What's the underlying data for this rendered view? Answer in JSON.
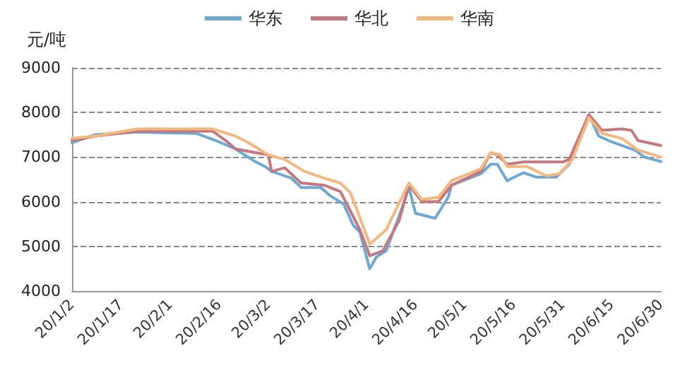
{
  "chart_data": {
    "type": "line",
    "ylabel": "元/吨",
    "legend": "top",
    "grid": "y",
    "marker": "none",
    "xlim": [
      "--01-02",
      "--06-30"
    ],
    "xticks": [
      {
        "value": "--01-02",
        "label": "20/1/2"
      },
      {
        "value": "--01-17",
        "label": "20/1/17"
      },
      {
        "value": "--02-01",
        "label": "20/2/1"
      },
      {
        "value": "--02-16",
        "label": "20/2/16"
      },
      {
        "value": "--03-02",
        "label": "20/3/2"
      },
      {
        "value": "--03-17",
        "label": "20/3/17"
      },
      {
        "value": "--04-01",
        "label": "20/4/1"
      },
      {
        "value": "--04-16",
        "label": "20/4/16"
      },
      {
        "value": "--05-01",
        "label": "20/5/1"
      },
      {
        "value": "--05-16",
        "label": "20/5/16"
      },
      {
        "value": "--05-31",
        "label": "20/5/31"
      },
      {
        "value": "--06-15",
        "label": "20/6/15"
      },
      {
        "value": "--06-30",
        "label": "20/6/30"
      }
    ],
    "ylim": [
      4000,
      9000
    ],
    "yticks": [
      4000,
      5000,
      6000,
      7000,
      8000,
      9000
    ],
    "series": [
      {
        "name": "华东",
        "color": "#6fa8d0",
        "x": [
          "--01-02",
          "--01-09",
          "--01-22",
          "--02-09",
          "--02-15",
          "--02-21",
          "--02-27",
          "--03-01",
          "--03-03",
          "--03-09",
          "--03-12",
          "--03-18",
          "--03-21",
          "--03-25",
          "--03-28",
          "--03-30",
          "--04-02",
          "--04-04",
          "--04-07",
          "--04-11",
          "--04-14",
          "--04-16",
          "--04-22",
          "--04-26",
          "--04-27",
          "--05-06",
          "--05-09",
          "--05-11",
          "--05-14",
          "--05-19",
          "--05-23",
          "--05-29",
          "--06-02",
          "--06-08",
          "--06-11",
          "--06-14",
          "--06-18",
          "--06-22",
          "--06-25",
          "--06-30"
        ],
        "values": [
          7320,
          7500,
          7560,
          7530,
          7370,
          7180,
          6900,
          6790,
          6680,
          6530,
          6320,
          6320,
          6130,
          5950,
          5470,
          5320,
          4500,
          4760,
          4900,
          5680,
          6320,
          5740,
          5630,
          6100,
          6370,
          6630,
          6840,
          6840,
          6470,
          6650,
          6550,
          6550,
          6840,
          7950,
          7470,
          7370,
          7260,
          7160,
          7000,
          6900
        ]
      },
      {
        "name": "华北",
        "color": "#c47880",
        "x": [
          "--01-02",
          "--01-09",
          "--01-22",
          "--02-14",
          "--02-18",
          "--02-21",
          "--02-27",
          "--03-02",
          "--03-03",
          "--03-07",
          "--03-12",
          "--03-19",
          "--03-24",
          "--03-26",
          "--03-30",
          "--04-02",
          "--04-06",
          "--04-11",
          "--04-14",
          "--04-18",
          "--04-23",
          "--04-27",
          "--05-06",
          "--05-09",
          "--05-11",
          "--05-14",
          "--05-19",
          "--05-31",
          "--06-02",
          "--06-08",
          "--06-12",
          "--06-18",
          "--06-21",
          "--06-23",
          "--06-30"
        ],
        "values": [
          7370,
          7470,
          7580,
          7580,
          7370,
          7180,
          7100,
          7050,
          6680,
          6760,
          6420,
          6370,
          6230,
          5950,
          5370,
          4790,
          4900,
          5580,
          6370,
          6000,
          6000,
          6370,
          6680,
          7100,
          7050,
          6840,
          6890,
          6890,
          6950,
          7950,
          7600,
          7630,
          7600,
          7370,
          7260
        ]
      },
      {
        "name": "华南",
        "color": "#f2b880",
        "x": [
          "--01-02",
          "--01-09",
          "--01-22",
          "--02-14",
          "--02-21",
          "--02-25",
          "--03-02",
          "--03-07",
          "--03-13",
          "--03-19",
          "--03-24",
          "--03-27",
          "--03-29",
          "--04-02",
          "--04-07",
          "--04-14",
          "--04-18",
          "--04-23",
          "--04-27",
          "--05-06",
          "--05-09",
          "--05-12",
          "--05-14",
          "--05-20",
          "--05-26",
          "--05-30",
          "--06-03",
          "--06-08",
          "--06-12",
          "--06-18",
          "--06-23",
          "--06-30"
        ],
        "values": [
          7420,
          7470,
          7630,
          7630,
          7470,
          7320,
          7050,
          6950,
          6680,
          6530,
          6420,
          6210,
          5840,
          5050,
          5370,
          6420,
          6050,
          6100,
          6470,
          6740,
          7100,
          7050,
          6790,
          6790,
          6580,
          6630,
          6950,
          7890,
          7530,
          7420,
          7160,
          7000
        ]
      }
    ]
  }
}
